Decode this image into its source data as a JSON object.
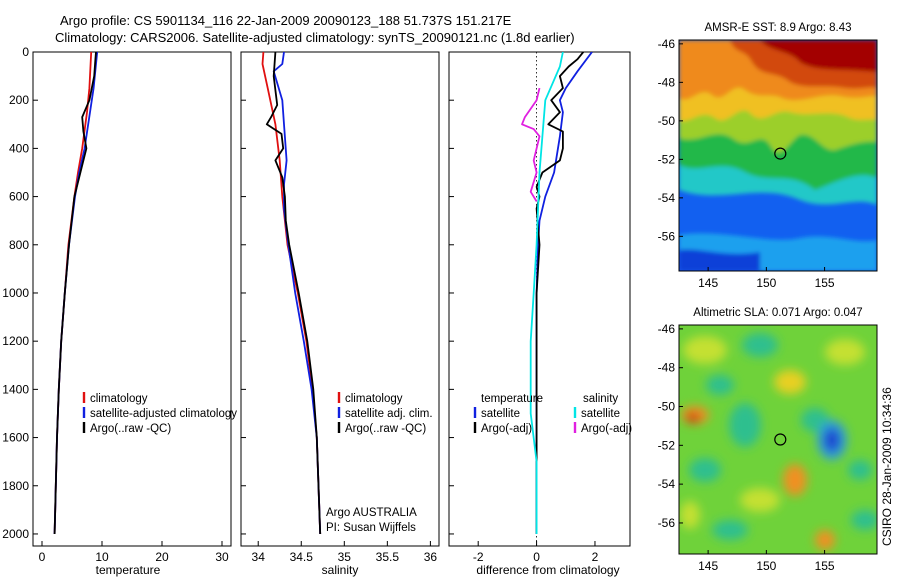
{
  "header": {
    "line1": "Argo profile: CS 5901134_116 22-Jan-2009 20090123_188 51.737S 151.217E",
    "line2": "Climatology: CARS2006. Satellite-adjusted climatology: synTS_20090121.nc (1.8d earlier)"
  },
  "side_label": "CSIRO 28-Jan-2009 10:34:36",
  "colors": {
    "climatology": "#e01010",
    "satellite": "#1020e0",
    "argo": "#000000",
    "sat_diff": "#00e5e5",
    "argo_adj_diff": "#e020e0"
  },
  "chart_data": [
    {
      "type": "line",
      "name": "temperature-profile",
      "xlabel": "temperature",
      "ylabel": "",
      "xlim": [
        -1.5,
        31.5
      ],
      "ylim": [
        2050,
        0
      ],
      "xticks": [
        0,
        10,
        20,
        30
      ],
      "yticks": [
        0,
        200,
        400,
        600,
        800,
        1000,
        1200,
        1400,
        1600,
        1800,
        2000
      ],
      "legend": [
        "climatology",
        "satellite-adjusted climatology",
        "Argo(..raw -QC)"
      ],
      "series": [
        {
          "name": "climatology",
          "color": "#e01010",
          "points": [
            [
              8.2,
              0
            ],
            [
              8.1,
              50
            ],
            [
              7.9,
              150
            ],
            [
              7.5,
              250
            ],
            [
              6.7,
              400
            ],
            [
              6.0,
              500
            ],
            [
              5.4,
              600
            ],
            [
              4.4,
              800
            ],
            [
              3.8,
              1000
            ],
            [
              3.2,
              1200
            ],
            [
              2.8,
              1400
            ],
            [
              2.5,
              1600
            ],
            [
              2.3,
              1800
            ],
            [
              2.1,
              2000
            ]
          ]
        },
        {
          "name": "satellite-adjusted climatology",
          "color": "#1020e0",
          "points": [
            [
              9.2,
              0
            ],
            [
              9.0,
              50
            ],
            [
              8.6,
              150
            ],
            [
              8.0,
              250
            ],
            [
              7.1,
              400
            ],
            [
              6.2,
              500
            ],
            [
              5.5,
              600
            ],
            [
              4.5,
              800
            ],
            [
              3.8,
              1000
            ],
            [
              3.2,
              1200
            ],
            [
              2.8,
              1400
            ],
            [
              2.5,
              1600
            ],
            [
              2.3,
              1800
            ],
            [
              2.1,
              2000
            ]
          ]
        },
        {
          "name": "Argo(..raw -QC)",
          "color": "#000000",
          "points": [
            [
              9.0,
              0
            ],
            [
              8.9,
              30
            ],
            [
              8.7,
              100
            ],
            [
              7.9,
              200
            ],
            [
              6.7,
              270
            ],
            [
              6.9,
              330
            ],
            [
              7.4,
              400
            ],
            [
              6.6,
              480
            ],
            [
              5.4,
              600
            ],
            [
              4.5,
              800
            ],
            [
              3.8,
              1000
            ],
            [
              3.2,
              1200
            ],
            [
              2.8,
              1400
            ],
            [
              2.5,
              1600
            ],
            [
              2.3,
              1800
            ],
            [
              2.1,
              2000
            ]
          ]
        }
      ]
    },
    {
      "type": "line",
      "name": "salinity-profile",
      "xlabel": "salinity",
      "ylabel": "",
      "xlim": [
        33.8,
        36.1
      ],
      "ylim": [
        2050,
        0
      ],
      "xticks": [
        34,
        34.5,
        35,
        35.5,
        36
      ],
      "yticks": [
        0,
        200,
        400,
        600,
        800,
        1000,
        1200,
        1400,
        1600,
        1800,
        2000
      ],
      "legend": [
        "climatology",
        "satellite adj. clim.",
        "Argo(..raw -QC)"
      ],
      "annotations": [
        "Argo AUSTRALIA",
        "PI: Susan Wijffels"
      ],
      "series": [
        {
          "name": "climatology",
          "color": "#e01010",
          "points": [
            [
              34.06,
              0
            ],
            [
              34.05,
              50
            ],
            [
              34.11,
              150
            ],
            [
              34.2,
              300
            ],
            [
              34.25,
              450
            ],
            [
              34.28,
              600
            ],
            [
              34.34,
              800
            ],
            [
              34.46,
              1000
            ],
            [
              34.56,
              1200
            ],
            [
              34.63,
              1400
            ],
            [
              34.68,
              1600
            ],
            [
              34.7,
              1800
            ],
            [
              34.72,
              2000
            ]
          ]
        },
        {
          "name": "satellite adj. clim.",
          "color": "#1020e0",
          "points": [
            [
              34.3,
              0
            ],
            [
              34.28,
              50
            ],
            [
              34.18,
              80
            ],
            [
              34.28,
              200
            ],
            [
              34.3,
              300
            ],
            [
              34.33,
              450
            ],
            [
              34.3,
              550
            ],
            [
              34.3,
              650
            ],
            [
              34.35,
              800
            ],
            [
              34.43,
              1000
            ],
            [
              34.53,
              1200
            ],
            [
              34.62,
              1400
            ],
            [
              34.68,
              1600
            ],
            [
              34.7,
              1800
            ],
            [
              34.72,
              2000
            ]
          ]
        },
        {
          "name": "Argo(..raw -QC)",
          "color": "#000000",
          "points": [
            [
              34.2,
              0
            ],
            [
              34.18,
              100
            ],
            [
              34.22,
              220
            ],
            [
              34.15,
              270
            ],
            [
              34.1,
              300
            ],
            [
              34.27,
              340
            ],
            [
              34.29,
              400
            ],
            [
              34.2,
              450
            ],
            [
              34.28,
              520
            ],
            [
              34.31,
              600
            ],
            [
              34.32,
              700
            ],
            [
              34.36,
              800
            ],
            [
              34.47,
              1000
            ],
            [
              34.57,
              1200
            ],
            [
              34.64,
              1400
            ],
            [
              34.68,
              1600
            ],
            [
              34.7,
              1800
            ],
            [
              34.72,
              2000
            ]
          ]
        }
      ]
    },
    {
      "type": "line",
      "name": "difference-from-climatology",
      "xlabel": "difference from climatology",
      "ylabel": "",
      "xlim": [
        -3,
        3.2
      ],
      "ylim": [
        2050,
        0
      ],
      "xticks": [
        -2,
        0,
        2
      ],
      "yticks": [
        0,
        200,
        400,
        600,
        800,
        1000,
        1200,
        1400,
        1600,
        1800,
        2000
      ],
      "legend_groups": [
        {
          "title": "temperature",
          "entries": [
            "satellite",
            "Argo(-adj)"
          ]
        },
        {
          "title": "salinity",
          "entries": [
            "satellite",
            "Argo(-adj)"
          ]
        }
      ],
      "series": [
        {
          "name": "temperature satellite",
          "color": "#1020e0",
          "points": [
            [
              1.9,
              0
            ],
            [
              1.4,
              80
            ],
            [
              1.0,
              150
            ],
            [
              0.8,
              200
            ],
            [
              0.9,
              250
            ],
            [
              0.8,
              350
            ],
            [
              0.6,
              500
            ],
            [
              0.3,
              600
            ],
            [
              0.1,
              700
            ],
            [
              0.05,
              800
            ],
            [
              0,
              1000
            ],
            [
              0,
              2000
            ]
          ]
        },
        {
          "name": "temperature Argo(-adj)",
          "color": "#000000",
          "points": [
            [
              1.6,
              0
            ],
            [
              1.4,
              30
            ],
            [
              1.1,
              60
            ],
            [
              0.8,
              100
            ],
            [
              0.9,
              150
            ],
            [
              0.5,
              200
            ],
            [
              0.8,
              250
            ],
            [
              0.4,
              300
            ],
            [
              0.9,
              330
            ],
            [
              0.9,
              400
            ],
            [
              0.8,
              450
            ],
            [
              0.2,
              500
            ],
            [
              0.0,
              560
            ],
            [
              0.1,
              600
            ],
            [
              0.0,
              650
            ],
            [
              0.1,
              800
            ],
            [
              0,
              1000
            ],
            [
              0,
              2000
            ]
          ]
        },
        {
          "name": "salinity satellite",
          "color": "#00e5e5",
          "points": [
            [
              0.9,
              0
            ],
            [
              0.8,
              60
            ],
            [
              0.3,
              200
            ],
            [
              0.2,
              350
            ],
            [
              0.1,
              500
            ],
            [
              0.0,
              800
            ],
            [
              -0.1,
              1000
            ],
            [
              -0.2,
              1200
            ],
            [
              -0.2,
              1500
            ],
            [
              0,
              1700
            ],
            [
              0,
              2000
            ]
          ]
        },
        {
          "name": "salinity Argo(-adj)",
          "color": "#e020e0",
          "points": [
            [
              0.1,
              150
            ],
            [
              0.0,
              200
            ],
            [
              -0.4,
              270
            ],
            [
              -0.5,
              300
            ],
            [
              -0.1,
              320
            ],
            [
              0.1,
              350
            ],
            [
              0.0,
              400
            ],
            [
              -0.1,
              450
            ],
            [
              0.0,
              500
            ],
            [
              -0.2,
              580
            ],
            [
              0.0,
              620
            ]
          ]
        }
      ]
    },
    {
      "type": "heatmap",
      "name": "sst-map",
      "title": "AMSR-E SST: 8.9 Argo: 8.43",
      "xlim": [
        142.5,
        159.5
      ],
      "ylim": [
        -57.8,
        -45.8
      ],
      "xticks": [
        145,
        150,
        155
      ],
      "yticks": [
        -46,
        -48,
        -50,
        -52,
        -54,
        -56
      ],
      "marker": {
        "lon": 151.2,
        "lat": -51.7
      }
    },
    {
      "type": "heatmap",
      "name": "sla-map",
      "title": "Altimetric SLA: 0.071 Argo: 0.047",
      "xlim": [
        142.5,
        159.5
      ],
      "ylim": [
        -57.6,
        -45.8
      ],
      "xticks": [
        145,
        150,
        155
      ],
      "yticks": [
        -46,
        -48,
        -50,
        -52,
        -54,
        -56
      ],
      "marker": {
        "lon": 151.2,
        "lat": -51.7
      }
    }
  ]
}
